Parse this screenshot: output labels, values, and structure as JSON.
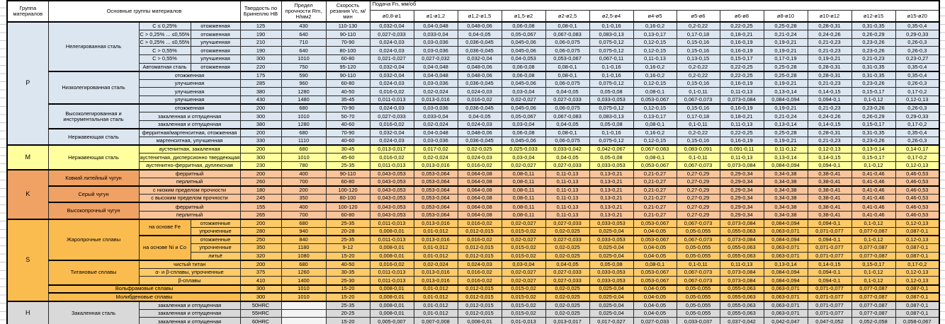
{
  "header": {
    "col_group": "Группа материалов",
    "col_main": "Основные группы материалов",
    "col_hb": "Твердость по Бринеллю НВ",
    "col_rm": "Предел прочности Rm, Н/мм2",
    "col_vc": "Скорость резания Vc, м/мин",
    "col_feed": "Подача Fn, мм/об",
    "diameters": [
      "ø0,8-ø1",
      "ø1-ø1,2",
      "ø1,2-ø1,5",
      "ø1,5-ø2",
      "ø2-ø2,5",
      "ø2,5-ø4",
      "ø4-ø5",
      "ø5-ø6",
      "ø6-ø8",
      "ø8-ø10",
      "ø10-ø12",
      "ø12-ø15",
      "ø15-ø20"
    ]
  },
  "colors": {
    "section_p": "#dce6f1",
    "section_m": "#ffff9d",
    "section_k_dark": "#f0a164",
    "section_k_light": "#f9c499",
    "section_s_dark": "#fbbc4f",
    "section_s_light": "#fdca67",
    "section_h": "#d9d9d9",
    "border": "#000000"
  },
  "feed_sets": {
    "A": [
      "0,032-0,04",
      "0,04-0,048",
      "0,048-0,06",
      "0,06-0,08",
      "0,08-0,1",
      "0,1-0,16",
      "0,16-0,2",
      "0,2-0,22",
      "0,22-0,25",
      "0,25-0,28",
      "0,28-0,31",
      "0,31-0,35",
      "0,35-0,4"
    ],
    "B": [
      "0,027-0,033",
      "0,033-0,04",
      "0,04-0,05",
      "0,05-0,067",
      "0,067-0,083",
      "0,083-0,13",
      "0,13-0,17",
      "0,17-0,18",
      "0,18-0,21",
      "0,21-0,24",
      "0,24-0,26",
      "0,26-0,29",
      "0,29-0,33"
    ],
    "C": [
      "0,024-0,03",
      "0,03-0,036",
      "0,036-0,045",
      "0,045-0,06",
      "0,06-0,075",
      "0,075-0,12",
      "0,12-0,15",
      "0,15-0,16",
      "0,16-0,19",
      "0,19-0,21",
      "0,21-0,23",
      "0,23-0,26",
      "0,26-0,3"
    ],
    "D": [
      "0,021-0,027",
      "0,027-0,032",
      "0,032-0,04",
      "0,04-0,053",
      "0,053-0,067",
      "0,067-0,11",
      "0,11-0,13",
      "0,13-0,15",
      "0,15-0,17",
      "0,17-0,19",
      "0,19-0,21",
      "0,21-0,23",
      "0,23-0,27"
    ],
    "E": [
      "0,016-0,02",
      "0,02-0,024",
      "0,024-0,03",
      "0,03-0,04",
      "0,04-0,05",
      "0,05-0,08",
      "0,08-0,1",
      "0,1-0,11",
      "0,11-0,13",
      "0,13-0,14",
      "0,14-0,15",
      "0,15-0,17",
      "0,17-0,2"
    ],
    "F": [
      "0,011-0,013",
      "0,013-0,016",
      "0,016-0,02",
      "0,02-0,027",
      "0,027-0,033",
      "0,033-0,053",
      "0,053-0,067",
      "0,067-0,073",
      "0,073-0,084",
      "0,084-0,094",
      "0,094-0,1",
      "0,1-0,12",
      "0,12-0,13"
    ],
    "G": [
      "0,013-0,017",
      "0,017-0,02",
      "0,02-0,025",
      "0,025-0,033",
      "0,033-0,042",
      "0,042-0,067",
      "0,067-0,083",
      "0,083-0,091",
      "0,091-0,11",
      "0,11-0,12",
      "0,12-0,13",
      "0,13-0,14",
      "0,14-0,17"
    ],
    "K": [
      "0,043-0,053",
      "0,053-0,064",
      "0,064-0,08",
      "0,08-0,11",
      "0,11-0,13",
      "0,13-0,21",
      "0,21-0,27",
      "0,27-0,29",
      "0,29-0,34",
      "0,34-0,38",
      "0,38-0,41",
      "0,41-0,46",
      "0,46-0,53"
    ],
    "S": [
      "0,008-0,01",
      "0,01-0,012",
      "0,012-0,015",
      "0,015-0,02",
      "0,02-0,025",
      "0,025-0,04",
      "0,04-0,05",
      "0,05-0,055",
      "0,055-0,063",
      "0,063-0,071",
      "0,071-0,077",
      "0,077-0,087",
      "0,087-0,1"
    ],
    "H": [
      "0,005-0,007",
      "0,007-0,008",
      "0,008-0,01",
      "0,01-0,013",
      "0,013-0,017",
      "0,017-0,027",
      "0,027-0,033",
      "0,033-0,037",
      "0,037-0,042",
      "0,042-0,047",
      "0,047-0,052",
      "0,052-0,058",
      "0,058-0,067"
    ]
  },
  "rows": [
    {
      "cls": "p",
      "cells": [
        {
          "t": "P",
          "r": 15,
          "k": "lbl"
        },
        {
          "t": "Нелегированная сталь",
          "r": 6,
          "k": "txt"
        },
        {
          "t": "C ≤ 0,25%"
        },
        {
          "t": "отожженная"
        },
        {
          "t": "125"
        },
        {
          "t": "430"
        },
        {
          "t": "110-130"
        }
      ],
      "feeds": "A"
    },
    {
      "cls": "p",
      "cells": [
        {
          "t": "C > 0,25% ... ≤0,55%"
        },
        {
          "t": "отожженная"
        },
        {
          "t": "190"
        },
        {
          "t": "640"
        },
        {
          "t": "90-110"
        }
      ],
      "feeds": "B"
    },
    {
      "cls": "p",
      "cells": [
        {
          "t": "C > 0,25% ... ≤0,55%"
        },
        {
          "t": "улучшенная"
        },
        {
          "t": "210"
        },
        {
          "t": "710"
        },
        {
          "t": "70-90"
        }
      ],
      "feeds": "C"
    },
    {
      "cls": "p",
      "cells": [
        {
          "t": "C > 0,55%"
        },
        {
          "t": "отожженная"
        },
        {
          "t": "190"
        },
        {
          "t": "640"
        },
        {
          "t": "80-100"
        }
      ],
      "feeds": "C"
    },
    {
      "cls": "p",
      "cells": [
        {
          "t": "C > 0,55%"
        },
        {
          "t": "улучшенная"
        },
        {
          "t": "300"
        },
        {
          "t": "1010"
        },
        {
          "t": "60-80"
        }
      ],
      "feeds": "D"
    },
    {
      "cls": "p",
      "cells": [
        {
          "t": "Автоматная сталь"
        },
        {
          "t": "отожженная"
        },
        {
          "t": "220"
        },
        {
          "t": "750"
        },
        {
          "t": "95-120"
        }
      ],
      "feeds": "A"
    },
    {
      "cls": "p gb",
      "cells": [
        {
          "t": "Низколегированная сталь",
          "r": 4,
          "k": "txt"
        },
        {
          "t": "отожженная",
          "c": 2
        },
        {
          "t": "175"
        },
        {
          "t": "590"
        },
        {
          "t": "90-110"
        }
      ],
      "feeds": "A"
    },
    {
      "cls": "p",
      "cells": [
        {
          "t": "улучшенная",
          "c": 2
        },
        {
          "t": "285"
        },
        {
          "t": "960"
        },
        {
          "t": "60-80"
        }
      ],
      "feeds": "C"
    },
    {
      "cls": "p",
      "cells": [
        {
          "t": "улучшенная",
          "c": 2
        },
        {
          "t": "380"
        },
        {
          "t": "1280"
        },
        {
          "t": "40-50"
        }
      ],
      "feeds": "E"
    },
    {
      "cls": "p",
      "cells": [
        {
          "t": "улучшенная",
          "c": 2
        },
        {
          "t": "430"
        },
        {
          "t": "1480"
        },
        {
          "t": "35-45"
        }
      ],
      "feeds": "F"
    },
    {
      "cls": "p gb",
      "cells": [
        {
          "t": "Высоколегированная и инструментальная сталь",
          "r": 3,
          "k": "txt"
        },
        {
          "t": "отожженная",
          "c": 2
        },
        {
          "t": "200"
        },
        {
          "t": "680"
        },
        {
          "t": "70-90"
        }
      ],
      "feeds": "C"
    },
    {
      "cls": "p",
      "cells": [
        {
          "t": "закаленная и отпущенная",
          "c": 2
        },
        {
          "t": "300"
        },
        {
          "t": "1010"
        },
        {
          "t": "50-70"
        }
      ],
      "feeds": "B"
    },
    {
      "cls": "p",
      "cells": [
        {
          "t": "закаленная и отпущенная",
          "c": 2
        },
        {
          "t": "380"
        },
        {
          "t": "1280"
        },
        {
          "t": "40-60"
        }
      ],
      "feeds": "E"
    },
    {
      "cls": "p gb",
      "cells": [
        {
          "t": "Нержавеющая сталь",
          "r": 2,
          "k": "txt"
        },
        {
          "t": "ферритная/мартенситная, отожженная",
          "c": 2
        },
        {
          "t": "200"
        },
        {
          "t": "680"
        },
        {
          "t": "70-90"
        }
      ],
      "feeds": "A"
    },
    {
      "cls": "p",
      "cells": [
        {
          "t": "мартенситная, улучшенная",
          "c": 2
        },
        {
          "t": "330"
        },
        {
          "t": "1110"
        },
        {
          "t": "40-60"
        }
      ],
      "feeds": "C"
    },
    {
      "cls": "m sb",
      "cells": [
        {
          "t": "M",
          "r": 3,
          "k": "lbl"
        },
        {
          "t": "Нержавеющая сталь",
          "r": 3,
          "k": "txt"
        },
        {
          "t": "аустенитная, закаленная",
          "c": 2
        },
        {
          "t": "200"
        },
        {
          "t": "680"
        },
        {
          "t": "30-45"
        }
      ],
      "feeds": "G"
    },
    {
      "cls": "m",
      "cells": [
        {
          "t": "аустенитная, дисперсионно твердеющая",
          "c": 2
        },
        {
          "t": "300"
        },
        {
          "t": "1010"
        },
        {
          "t": "45-60"
        }
      ],
      "feeds": "E"
    },
    {
      "cls": "m",
      "cells": [
        {
          "t": "аустенитно-ферритная, дуплексная",
          "c": 2
        },
        {
          "t": "230"
        },
        {
          "t": "780"
        },
        {
          "t": "25-35"
        }
      ],
      "feeds": "F"
    },
    {
      "cls": "k sb",
      "cells": [
        {
          "t": "K",
          "r": 6,
          "k": "lbl dk"
        },
        {
          "t": "Ковкий литейный чугун",
          "r": 2,
          "k": "txt dk"
        },
        {
          "t": "ферритный",
          "c": 2
        },
        {
          "t": "200"
        },
        {
          "t": "400"
        },
        {
          "t": "90-110"
        }
      ],
      "feeds": "K"
    },
    {
      "cls": "k",
      "cells": [
        {
          "t": "перлитный",
          "c": 2
        },
        {
          "t": "260"
        },
        {
          "t": "700"
        },
        {
          "t": "60-80"
        }
      ],
      "feeds": "K"
    },
    {
      "cls": "k gb",
      "cells": [
        {
          "t": "Серый чугун",
          "r": 2,
          "k": "txt dk"
        },
        {
          "t": "с низким пределом прочности",
          "c": 2
        },
        {
          "t": "180"
        },
        {
          "t": "200"
        },
        {
          "t": "100-120"
        }
      ],
      "feeds": "K"
    },
    {
      "cls": "k",
      "cells": [
        {
          "t": "с высоким пределом прочности",
          "c": 2
        },
        {
          "t": "245"
        },
        {
          "t": "350"
        },
        {
          "t": "80-100"
        }
      ],
      "feeds": "K"
    },
    {
      "cls": "k gb",
      "cells": [
        {
          "t": "Высокопрочный чугун",
          "r": 2,
          "k": "txt dk"
        },
        {
          "t": "ферритный",
          "c": 2
        },
        {
          "t": "155"
        },
        {
          "t": "400"
        },
        {
          "t": "100-120"
        }
      ],
      "feeds": "K"
    },
    {
      "cls": "k",
      "cells": [
        {
          "t": "перлитный",
          "c": 2
        },
        {
          "t": "265"
        },
        {
          "t": "700"
        },
        {
          "t": "60-80"
        }
      ],
      "feeds": "K"
    },
    {
      "cls": "s sb",
      "cells": [
        {
          "t": "S",
          "r": 10,
          "k": "lbl dk"
        },
        {
          "t": "Жаропрочные сплавы",
          "r": 5,
          "k": "txt dk"
        },
        {
          "t": "на основе Fe",
          "r": 2,
          "k": "dk"
        },
        {
          "t": "отожженные"
        },
        {
          "t": "200"
        },
        {
          "t": "680"
        },
        {
          "t": "25-35"
        }
      ],
      "feeds": "F"
    },
    {
      "cls": "s",
      "cells": [
        {
          "t": "упрочненные"
        },
        {
          "t": "280"
        },
        {
          "t": "940"
        },
        {
          "t": "20-28"
        }
      ],
      "feeds": "S"
    },
    {
      "cls": "s gb",
      "cells": [
        {
          "t": "на основе Ni и Co",
          "r": 3,
          "k": "dk"
        },
        {
          "t": "отожженные"
        },
        {
          "t": "250"
        },
        {
          "t": "840"
        },
        {
          "t": "25-35"
        }
      ],
      "feeds": "F"
    },
    {
      "cls": "s",
      "cells": [
        {
          "t": "упрочненные"
        },
        {
          "t": "350"
        },
        {
          "t": "1180"
        },
        {
          "t": "9-12"
        }
      ],
      "feeds": "S"
    },
    {
      "cls": "s",
      "cells": [
        {
          "t": "литьё"
        },
        {
          "t": "320"
        },
        {
          "t": "1080"
        },
        {
          "t": "15-20"
        }
      ],
      "feeds": "S"
    },
    {
      "cls": "s gb",
      "cells": [
        {
          "t": "Титановые сплавы",
          "r": 3,
          "k": "txt dk"
        },
        {
          "t": "чистый титан",
          "c": 2
        },
        {
          "t": "200"
        },
        {
          "t": "680"
        },
        {
          "t": "40-50"
        }
      ],
      "feeds": "E"
    },
    {
      "cls": "s",
      "cells": [
        {
          "t": "α- и β-сплавы, упрочненные",
          "c": 2
        },
        {
          "t": "375"
        },
        {
          "t": "1260"
        },
        {
          "t": "30-35"
        }
      ],
      "feeds": "F"
    },
    {
      "cls": "s",
      "cells": [
        {
          "t": "β-сплавы",
          "c": 2
        },
        {
          "t": "410"
        },
        {
          "t": "1400"
        },
        {
          "t": "25-30"
        }
      ],
      "feeds": "F"
    },
    {
      "cls": "s gb",
      "cells": [
        {
          "t": "Вольфрамовые сплавы",
          "c": 3,
          "k": "dk"
        },
        {
          "t": "300"
        },
        {
          "t": "1010"
        },
        {
          "t": "15-20"
        }
      ],
      "feeds": "S"
    },
    {
      "cls": "s gb",
      "cells": [
        {
          "t": "Молибденовые сплавы",
          "c": 3,
          "k": "dk"
        },
        {
          "t": "300"
        },
        {
          "t": "1010"
        },
        {
          "t": "15-20"
        }
      ],
      "feeds": "S"
    },
    {
      "cls": "h sb",
      "cells": [
        {
          "t": "H",
          "r": 3,
          "k": "lbl"
        },
        {
          "t": "Закаленная сталь",
          "r": 3,
          "k": "txt"
        },
        {
          "t": "закаленная и отпущенная",
          "c": 2
        },
        {
          "t": "50HRC"
        },
        {
          "t": "",
          "k": "wht"
        },
        {
          "t": "25-35"
        }
      ],
      "feeds": "S"
    },
    {
      "cls": "h",
      "cells": [
        {
          "t": "закаленная и отпущенная",
          "c": 2
        },
        {
          "t": "55HRC"
        },
        {
          "t": "",
          "k": "wht"
        },
        {
          "t": "20-25"
        }
      ],
      "feeds": "S"
    },
    {
      "cls": "h",
      "cells": [
        {
          "t": "закаленная и отпущенная",
          "c": 2
        },
        {
          "t": "60HRC"
        },
        {
          "t": "",
          "k": "wht"
        },
        {
          "t": "15-20"
        }
      ],
      "feeds": "H"
    }
  ]
}
